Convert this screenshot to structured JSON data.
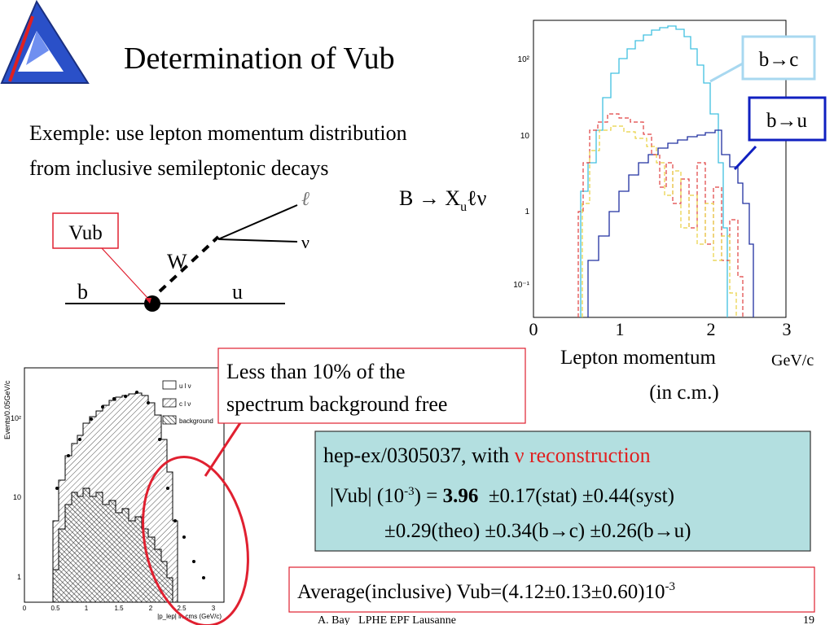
{
  "title": "Determination of Vub",
  "intro": [
    "Exemple: use lepton momentum distribution",
    "from inclusive semileptonic decays"
  ],
  "diagram": {
    "box": "Vub",
    "W": "W",
    "b": "b",
    "u": "u",
    "lepton": "ℓ",
    "nu": "ν"
  },
  "decay": {
    "main": "B → X",
    "sub": "u",
    "rest": "ℓν"
  },
  "top_plot": {
    "legend": [
      "b→c",
      "b→u"
    ],
    "yticks": [
      "10²",
      "10",
      "1",
      "10⁻¹"
    ],
    "xticks": [
      "0",
      "1",
      "2",
      "3"
    ],
    "xlabel": "Lepton momentum",
    "xunit": "GeV/c",
    "xlabel2": "(in c.m.)"
  },
  "bottom_plot": {
    "ylabel": "Events/0.05GeV/c",
    "yticks": [
      "10²",
      "10",
      "1"
    ],
    "xticks": [
      "0",
      "0.5",
      "1",
      "1.5",
      "2",
      "2.5",
      "3"
    ],
    "xlabel": "|p_lep| in cms (GeV/c)",
    "legend": [
      "u l ν",
      "c l ν",
      "background"
    ]
  },
  "callout": [
    "Less than 10% of the",
    "spectrum background free"
  ],
  "result": {
    "ref": "hep-ex/0305037, with ",
    "ref_red": "ν reconstruction",
    "line1a": "|Vub| (10",
    "line1exp": "-3",
    "line1b": ") = ",
    "line1bold": "3.96",
    "line1c": "  ±0.17(stat) ±0.44(syst)",
    "line2": "±0.29(theo) ±0.34(b→c) ±0.26(b→u)"
  },
  "average": {
    "text": "Average(inclusive) Vub=(4.12±0.13±0.60)10",
    "exp": "-3"
  },
  "footer": {
    "author": "A. Bay   LPHE EPF Lausanne",
    "page": "19"
  }
}
